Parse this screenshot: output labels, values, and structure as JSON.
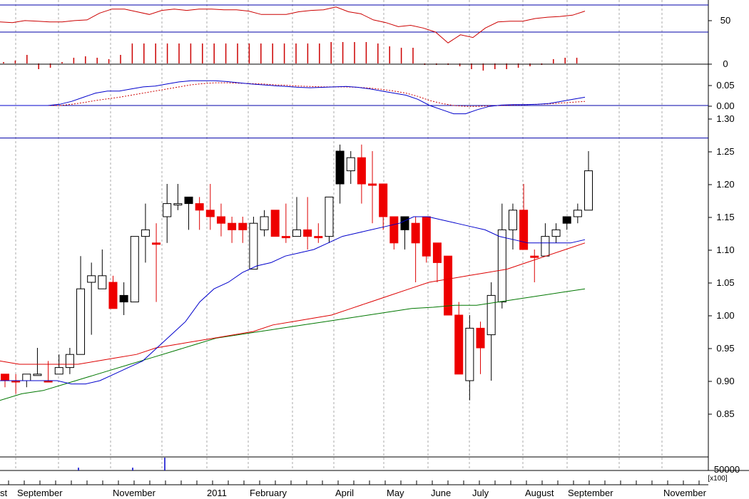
{
  "chart_data": {
    "type": "candlestick",
    "x_labels": [
      "st",
      "September",
      "November",
      "2011",
      "February",
      "April",
      "May",
      "June",
      "July",
      "August",
      "September",
      "November"
    ],
    "panels": {
      "rsi": {
        "ticks": [
          "50"
        ],
        "levels": [
          70,
          30
        ],
        "values": [
          45,
          44,
          47,
          46,
          45,
          45,
          47,
          48,
          58,
          64,
          64,
          60,
          56,
          62,
          64,
          62,
          64,
          64,
          63,
          63,
          61,
          56,
          56,
          56,
          60,
          62,
          63,
          67,
          60,
          57,
          48,
          44,
          38,
          40,
          36,
          30,
          14,
          26,
          22,
          36,
          45,
          46,
          46,
          50,
          52,
          53,
          55,
          61
        ]
      },
      "histogram": {
        "ticks": [
          "0"
        ],
        "values": [
          0.05,
          0.1,
          0.3,
          -0.2,
          -0.15,
          0.05,
          0.2,
          0.25,
          0.2,
          0.15,
          0.3,
          0.7,
          0.7,
          0.7,
          0.7,
          0.7,
          0.7,
          0.7,
          0.7,
          0.7,
          0.7,
          0.7,
          0.7,
          0.7,
          0.7,
          0.7,
          0.7,
          0.7,
          0.75,
          0.75,
          0.75,
          0.75,
          0.7,
          0.6,
          0.55,
          0.55,
          -0.05,
          -0.05,
          -0.05,
          -0.1,
          -0.2,
          -0.25,
          -0.2,
          -0.2,
          -0.15,
          -0.1,
          -0.05,
          0.15,
          0.2,
          0.2
        ]
      },
      "macd": {
        "ticks": [
          "0.05",
          "0.00"
        ],
        "macd": [
          0.0,
          0.0,
          0.0,
          0.0,
          0.0,
          0.003,
          0.01,
          0.02,
          0.03,
          0.035,
          0.035,
          0.04,
          0.045,
          0.047,
          0.052,
          0.057,
          0.06,
          0.06,
          0.06,
          0.058,
          0.055,
          0.052,
          0.05,
          0.048,
          0.046,
          0.044,
          0.043,
          0.044,
          0.045,
          0.046,
          0.044,
          0.04,
          0.035,
          0.03,
          0.025,
          0.015,
          0.0,
          -0.01,
          -0.02,
          -0.02,
          -0.01,
          -0.002,
          0.001,
          0.002,
          0.002,
          0.003,
          0.005,
          0.01,
          0.015,
          0.02
        ],
        "signal": [
          0.0,
          0.0,
          0.0,
          0.0,
          0.0,
          0.0,
          0.003,
          0.007,
          0.012,
          0.016,
          0.02,
          0.025,
          0.03,
          0.035,
          0.04,
          0.045,
          0.05,
          0.053,
          0.055,
          0.055,
          0.054,
          0.053,
          0.052,
          0.05,
          0.049,
          0.047,
          0.046,
          0.045,
          0.045,
          0.045,
          0.044,
          0.042,
          0.039,
          0.035,
          0.03,
          0.022,
          0.012,
          0.005,
          0.0,
          -0.002,
          -0.002,
          -0.001,
          0.0,
          0.001,
          0.002,
          0.003,
          0.004,
          0.006,
          0.008,
          0.01
        ]
      },
      "price": {
        "ticks": [
          "1.30",
          "1.25",
          "1.20",
          "1.15",
          "1.10",
          "1.05",
          "1.00",
          "0.95",
          "0.90",
          "0.85"
        ],
        "reference_line": 1.27,
        "candles": [
          {
            "o": 0.91,
            "c": 0.9,
            "h": 0.91,
            "l": 0.89,
            "fill": "red"
          },
          {
            "o": 0.9,
            "c": 0.9,
            "h": 0.91,
            "l": 0.88,
            "fill": "red"
          },
          {
            "o": 0.9,
            "c": 0.91,
            "h": 0.91,
            "l": 0.89,
            "fill": "white"
          },
          {
            "o": 0.91,
            "c": 0.91,
            "h": 0.95,
            "l": 0.91,
            "fill": "white"
          },
          {
            "o": 0.9,
            "c": 0.9,
            "h": 0.93,
            "l": 0.9,
            "fill": "red"
          },
          {
            "o": 0.91,
            "c": 0.92,
            "h": 0.94,
            "l": 0.91,
            "fill": "white"
          },
          {
            "o": 0.92,
            "c": 0.94,
            "h": 0.95,
            "l": 0.91,
            "fill": "white"
          },
          {
            "o": 0.94,
            "c": 1.04,
            "h": 1.09,
            "l": 0.94,
            "fill": "white"
          },
          {
            "o": 1.05,
            "c": 1.06,
            "h": 1.08,
            "l": 0.97,
            "fill": "white"
          },
          {
            "o": 1.04,
            "c": 1.06,
            "h": 1.1,
            "l": 1.04,
            "fill": "white"
          },
          {
            "o": 1.05,
            "c": 1.01,
            "h": 1.06,
            "l": 1.01,
            "fill": "red"
          },
          {
            "o": 1.03,
            "c": 1.02,
            "h": 1.05,
            "l": 1.0,
            "fill": "black"
          },
          {
            "o": 1.02,
            "c": 1.12,
            "h": 1.12,
            "l": 1.02,
            "fill": "white"
          },
          {
            "o": 1.12,
            "c": 1.13,
            "h": 1.17,
            "l": 1.08,
            "fill": "white"
          },
          {
            "o": 1.11,
            "c": 1.11,
            "h": 1.14,
            "l": 1.02,
            "fill": "red"
          },
          {
            "o": 1.15,
            "c": 1.17,
            "h": 1.2,
            "l": 1.11,
            "fill": "white"
          },
          {
            "o": 1.17,
            "c": 1.17,
            "h": 1.2,
            "l": 1.16,
            "fill": "white"
          },
          {
            "o": 1.18,
            "c": 1.17,
            "h": 1.18,
            "l": 1.13,
            "fill": "black"
          },
          {
            "o": 1.17,
            "c": 1.16,
            "h": 1.18,
            "l": 1.13,
            "fill": "red"
          },
          {
            "o": 1.16,
            "c": 1.15,
            "h": 1.2,
            "l": 1.13,
            "fill": "red"
          },
          {
            "o": 1.15,
            "c": 1.14,
            "h": 1.17,
            "l": 1.12,
            "fill": "red"
          },
          {
            "o": 1.14,
            "c": 1.13,
            "h": 1.15,
            "l": 1.11,
            "fill": "red"
          },
          {
            "o": 1.14,
            "c": 1.13,
            "h": 1.15,
            "l": 1.11,
            "fill": "red"
          },
          {
            "o": 1.07,
            "c": 1.14,
            "h": 1.15,
            "l": 1.07,
            "fill": "white"
          },
          {
            "o": 1.13,
            "c": 1.15,
            "h": 1.16,
            "l": 1.12,
            "fill": "white"
          },
          {
            "o": 1.16,
            "c": 1.12,
            "h": 1.16,
            "l": 1.12,
            "fill": "red"
          },
          {
            "o": 1.12,
            "c": 1.12,
            "h": 1.17,
            "l": 1.11,
            "fill": "red"
          },
          {
            "o": 1.12,
            "c": 1.13,
            "h": 1.18,
            "l": 1.12,
            "fill": "white"
          },
          {
            "o": 1.13,
            "c": 1.12,
            "h": 1.18,
            "l": 1.1,
            "fill": "red"
          },
          {
            "o": 1.12,
            "c": 1.12,
            "h": 1.14,
            "l": 1.11,
            "fill": "red"
          },
          {
            "o": 1.12,
            "c": 1.18,
            "h": 1.18,
            "l": 1.11,
            "fill": "white"
          },
          {
            "o": 1.25,
            "c": 1.2,
            "h": 1.26,
            "l": 1.17,
            "fill": "black"
          },
          {
            "o": 1.22,
            "c": 1.24,
            "h": 1.25,
            "l": 1.2,
            "fill": "white"
          },
          {
            "o": 1.24,
            "c": 1.2,
            "h": 1.26,
            "l": 1.17,
            "fill": "red"
          },
          {
            "o": 1.2,
            "c": 1.2,
            "h": 1.25,
            "l": 1.14,
            "fill": "red"
          },
          {
            "o": 1.2,
            "c": 1.15,
            "h": 1.2,
            "l": 1.13,
            "fill": "red"
          },
          {
            "o": 1.15,
            "c": 1.11,
            "h": 1.15,
            "l": 1.1,
            "fill": "red"
          },
          {
            "o": 1.15,
            "c": 1.13,
            "h": 1.15,
            "l": 1.1,
            "fill": "black"
          },
          {
            "o": 1.14,
            "c": 1.11,
            "h": 1.15,
            "l": 1.05,
            "fill": "red"
          },
          {
            "o": 1.15,
            "c": 1.09,
            "h": 1.15,
            "l": 1.08,
            "fill": "red"
          },
          {
            "o": 1.11,
            "c": 1.08,
            "h": 1.11,
            "l": 1.05,
            "fill": "red"
          },
          {
            "o": 1.09,
            "c": 1.0,
            "h": 1.09,
            "l": 1.0,
            "fill": "red"
          },
          {
            "o": 1.0,
            "c": 0.91,
            "h": 1.02,
            "l": 0.91,
            "fill": "red"
          },
          {
            "o": 0.9,
            "c": 0.98,
            "h": 1.0,
            "l": 0.87,
            "fill": "white"
          },
          {
            "o": 0.98,
            "c": 0.95,
            "h": 0.99,
            "l": 0.91,
            "fill": "red"
          },
          {
            "o": 0.97,
            "c": 1.03,
            "h": 1.05,
            "l": 0.9,
            "fill": "white"
          },
          {
            "o": 1.02,
            "c": 1.13,
            "h": 1.17,
            "l": 1.01,
            "fill": "white"
          },
          {
            "o": 1.13,
            "c": 1.16,
            "h": 1.17,
            "l": 1.1,
            "fill": "white"
          },
          {
            "o": 1.16,
            "c": 1.1,
            "h": 1.2,
            "l": 1.1,
            "fill": "red"
          },
          {
            "o": 1.09,
            "c": 1.09,
            "h": 1.1,
            "l": 1.05,
            "fill": "red"
          },
          {
            "o": 1.09,
            "c": 1.12,
            "h": 1.14,
            "l": 1.09,
            "fill": "white"
          },
          {
            "o": 1.12,
            "c": 1.13,
            "h": 1.14,
            "l": 1.11,
            "fill": "white"
          },
          {
            "o": 1.15,
            "c": 1.14,
            "h": 1.15,
            "l": 1.13,
            "fill": "black"
          },
          {
            "o": 1.15,
            "c": 1.16,
            "h": 1.17,
            "l": 1.14,
            "fill": "white"
          },
          {
            "o": 1.16,
            "c": 1.22,
            "h": 1.25,
            "l": 1.16,
            "fill": "white"
          }
        ],
        "ma_blue": [
          0.9,
          0.9,
          0.9,
          0.9,
          0.9,
          0.895,
          0.895,
          0.9,
          0.91,
          0.92,
          0.93,
          0.95,
          0.97,
          0.99,
          1.02,
          1.04,
          1.05,
          1.065,
          1.075,
          1.08,
          1.09,
          1.095,
          1.1,
          1.11,
          1.12,
          1.125,
          1.13,
          1.135,
          1.14,
          1.15,
          1.15,
          1.145,
          1.14,
          1.135,
          1.13,
          1.12,
          1.115,
          1.11,
          1.11,
          1.11,
          1.11,
          1.115
        ],
        "ma_red": [
          0.93,
          0.925,
          0.925,
          0.925,
          0.925,
          0.93,
          0.935,
          0.94,
          0.95,
          0.955,
          0.96,
          0.965,
          0.97,
          0.975,
          0.985,
          0.99,
          0.995,
          1.0,
          1.01,
          1.02,
          1.03,
          1.04,
          1.05,
          1.055,
          1.06,
          1.065,
          1.07,
          1.08,
          1.09,
          1.1,
          1.11
        ],
        "ma_green": [
          0.87,
          0.88,
          0.885,
          0.895,
          0.905,
          0.915,
          0.925,
          0.935,
          0.945,
          0.955,
          0.965,
          0.97,
          0.975,
          0.98,
          0.985,
          0.99,
          0.995,
          1.0,
          1.005,
          1.01,
          1.012,
          1.015,
          1.015,
          1.02,
          1.025,
          1.03,
          1.035,
          1.04
        ]
      },
      "volume": {
        "ticks": [
          "50000"
        ],
        "multiplier": "x100"
      }
    }
  }
}
